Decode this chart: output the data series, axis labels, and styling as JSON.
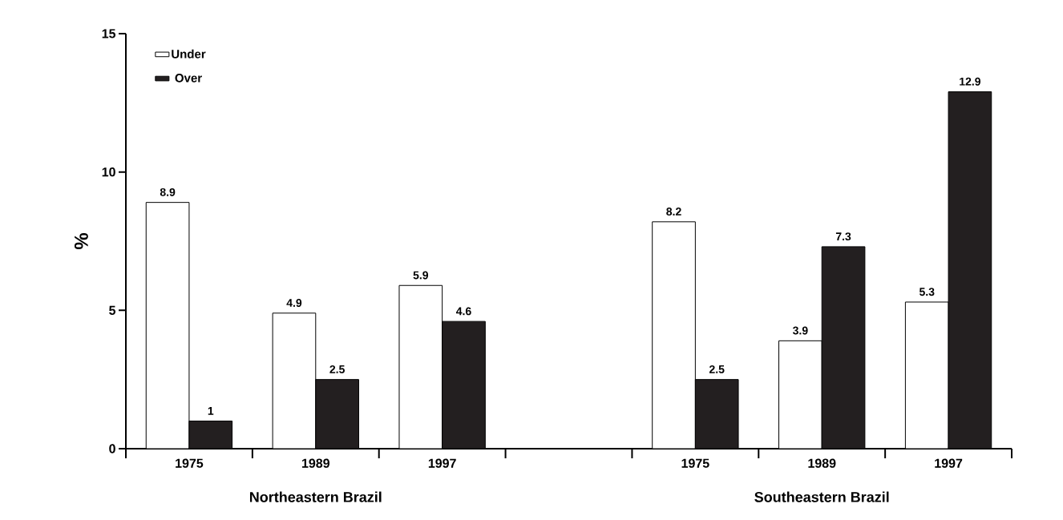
{
  "chart_data": {
    "type": "bar",
    "ylabel": "%",
    "categories": [
      "1975",
      "1989",
      "1997",
      null,
      "1975",
      "1989",
      "1997"
    ],
    "series": [
      {
        "name": "Under",
        "color": "#ffffff",
        "values": [
          8.9,
          4.9,
          5.9,
          null,
          8.2,
          3.9,
          5.3
        ]
      },
      {
        "name": "Over",
        "color": "#231f20",
        "values": [
          1,
          2.5,
          4.6,
          null,
          2.5,
          7.3,
          12.9
        ]
      }
    ],
    "ylim": [
      0,
      15
    ],
    "yticks": [
      0,
      5,
      10,
      15
    ],
    "data_labels": true,
    "legend": "top left",
    "annotations": [
      "Northeastern Brazil",
      "Southeastern Brazil"
    ]
  }
}
